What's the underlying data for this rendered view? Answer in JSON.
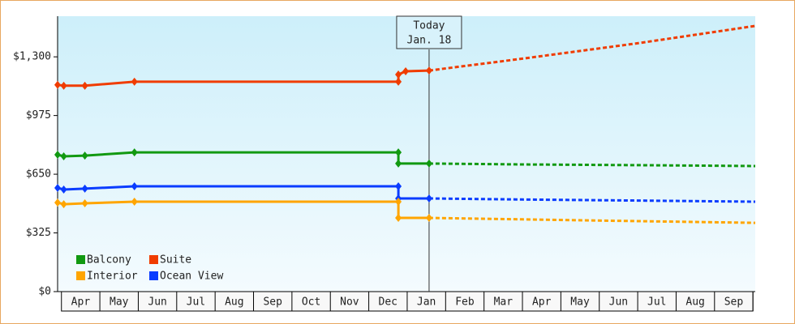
{
  "chart_data": {
    "type": "line",
    "xlim": [
      -0.1,
      18.06
    ],
    "xticks": [
      {
        "value": 0.5,
        "label": "Apr"
      },
      {
        "value": 1.5,
        "label": "May"
      },
      {
        "value": 2.5,
        "label": "Jun"
      },
      {
        "value": 3.5,
        "label": "Jul"
      },
      {
        "value": 4.5,
        "label": "Aug"
      },
      {
        "value": 5.5,
        "label": "Sep"
      },
      {
        "value": 6.5,
        "label": "Oct"
      },
      {
        "value": 7.5,
        "label": "Nov"
      },
      {
        "value": 8.5,
        "label": "Dec"
      },
      {
        "value": 9.5,
        "label": "Jan"
      },
      {
        "value": 10.5,
        "label": "Feb"
      },
      {
        "value": 11.5,
        "label": "Mar"
      },
      {
        "value": 12.5,
        "label": "Apr"
      },
      {
        "value": 13.5,
        "label": "May"
      },
      {
        "value": 14.5,
        "label": "Jun"
      },
      {
        "value": 15.5,
        "label": "Jul"
      },
      {
        "value": 16.5,
        "label": "Aug"
      },
      {
        "value": 17.5,
        "label": "Sep"
      }
    ],
    "ylim": [
      0,
      1525
    ],
    "yticks": [
      {
        "value": 0,
        "label": "$0"
      },
      {
        "value": 325,
        "label": "$325"
      },
      {
        "value": 650,
        "label": "$650"
      },
      {
        "value": 975,
        "label": "$975"
      },
      {
        "value": 1300,
        "label": "$1,300"
      }
    ],
    "today": {
      "x": 9.57,
      "label": "Today",
      "date": "Jan. 18"
    },
    "series": [
      {
        "name": "Suite",
        "color": "#f03c00",
        "x": [
          -0.1,
          0.06,
          0.61,
          1.9,
          8.77,
          8.77,
          8.96,
          9.57
        ],
        "values": [
          1145,
          1140,
          1140,
          1162,
          1162,
          1202,
          1220,
          1224
        ],
        "forecast_x": [
          9.57,
          12,
          15,
          18.06
        ],
        "forecast_values": [
          1224,
          1290,
          1375,
          1471
        ]
      },
      {
        "name": "Balcony",
        "color": "#119911",
        "x": [
          -0.1,
          0.06,
          0.61,
          1.9,
          8.77,
          8.77,
          9.57
        ],
        "values": [
          758,
          749,
          753,
          771,
          771,
          709,
          709
        ],
        "forecast_x": [
          9.57,
          12,
          15,
          18.06
        ],
        "forecast_values": [
          709,
          704,
          700,
          695
        ]
      },
      {
        "name": "Ocean View",
        "color": "#0a3cff",
        "x": [
          -0.1,
          0.06,
          0.61,
          1.9,
          8.77,
          8.77,
          9.57
        ],
        "values": [
          574,
          565,
          570,
          583,
          583,
          516,
          516
        ],
        "forecast_x": [
          9.57,
          12,
          15,
          18.06
        ],
        "forecast_values": [
          516,
          510,
          504,
          498
        ]
      },
      {
        "name": "Interior",
        "color": "#ffa500",
        "x": [
          -0.1,
          0.06,
          0.61,
          1.9,
          8.77,
          8.77,
          9.57
        ],
        "values": [
          493,
          484,
          489,
          498,
          498,
          408,
          408
        ],
        "forecast_x": [
          9.57,
          12,
          15,
          18.06
        ],
        "forecast_values": [
          408,
          400,
          390,
          381
        ]
      }
    ],
    "legend_order": [
      1,
      0,
      3,
      2
    ]
  }
}
